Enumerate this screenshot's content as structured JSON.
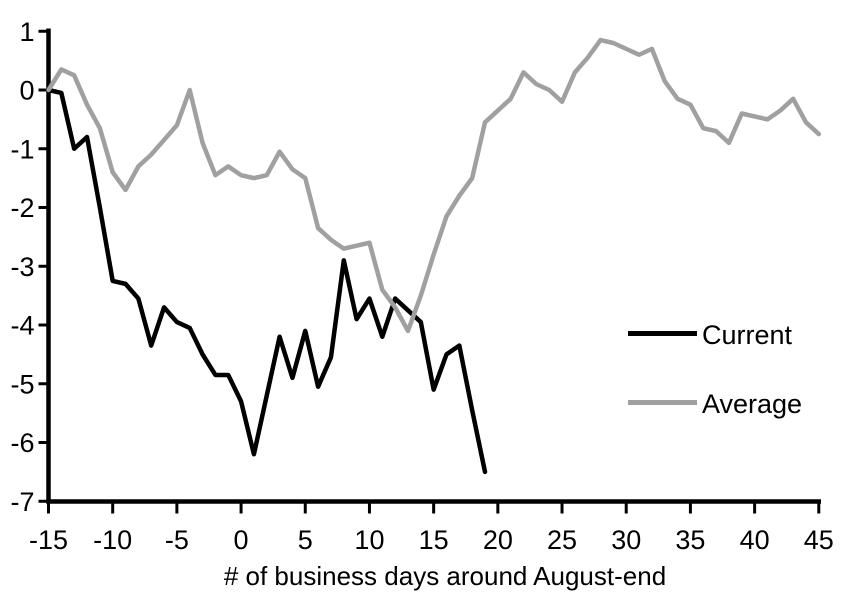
{
  "chart_data": {
    "type": "line",
    "title": "",
    "xlabel": "# of business days around August-end",
    "ylabel": "",
    "xlim": [
      -15,
      45
    ],
    "ylim": [
      -7,
      1
    ],
    "x_ticks": [
      -15,
      -10,
      -5,
      0,
      5,
      10,
      15,
      20,
      25,
      30,
      35,
      40,
      45
    ],
    "y_ticks": [
      1,
      0,
      -1,
      -2,
      -3,
      -4,
      -5,
      -6,
      -7
    ],
    "grid": false,
    "legend_position": "middle-right",
    "axis_color": "#000000",
    "series": [
      {
        "name": "Current",
        "color": "#000000",
        "x_start": -15,
        "x_step": 1,
        "values": [
          0.0,
          -0.05,
          -1.0,
          -0.8,
          -2.0,
          -3.25,
          -3.3,
          -3.55,
          -4.35,
          -3.7,
          -3.95,
          -4.05,
          -4.5,
          -4.85,
          -4.85,
          -5.3,
          -6.2,
          -5.2,
          -4.2,
          -4.9,
          -4.1,
          -5.05,
          -4.55,
          -2.9,
          -3.9,
          -3.55,
          -4.2,
          -3.55,
          -3.75,
          -3.95,
          -5.1,
          -4.5,
          -4.35,
          -5.45,
          -6.5
        ]
      },
      {
        "name": "Average",
        "color": "#a0a0a0",
        "x_start": -15,
        "x_step": 1,
        "values": [
          0.0,
          0.35,
          0.25,
          -0.25,
          -0.65,
          -1.4,
          -1.7,
          -1.3,
          -1.1,
          -0.85,
          -0.6,
          0.0,
          -0.9,
          -1.45,
          -1.3,
          -1.45,
          -1.5,
          -1.45,
          -1.05,
          -1.35,
          -1.5,
          -2.35,
          -2.55,
          -2.7,
          -2.65,
          -2.6,
          -3.4,
          -3.7,
          -4.1,
          -3.5,
          -2.8,
          -2.15,
          -1.8,
          -1.5,
          -0.55,
          -0.35,
          -0.15,
          0.3,
          0.1,
          0.0,
          -0.2,
          0.3,
          0.55,
          0.85,
          0.8,
          0.7,
          0.6,
          0.7,
          0.15,
          -0.15,
          -0.25,
          -0.65,
          -0.7,
          -0.9,
          -0.4,
          -0.45,
          -0.5,
          -0.35,
          -0.15,
          -0.55,
          -0.75
        ]
      }
    ]
  }
}
